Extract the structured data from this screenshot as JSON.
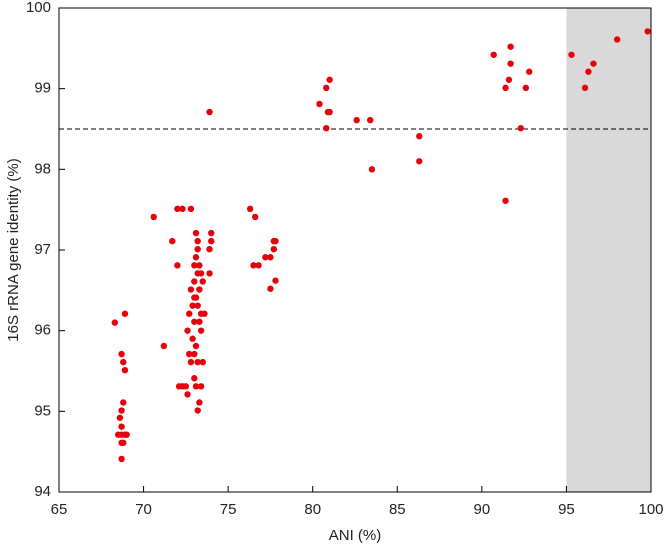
{
  "chart_data": {
    "type": "scatter",
    "x_label": "ANI (%)",
    "y_label": "16S rRNA gene identity (%)",
    "xlim": [
      65,
      100
    ],
    "xticks": [
      65,
      70,
      75,
      80,
      85,
      90,
      95,
      100
    ],
    "ylim": [
      94,
      100
    ],
    "yticks": [
      94,
      95,
      96,
      97,
      98,
      99,
      100
    ],
    "reference_line_y": 98.5,
    "shaded_x": [
      95,
      100
    ],
    "series": [
      {
        "color": "#e8000b",
        "x": [
          95.3,
          98.0,
          99.8,
          96.6,
          96.3,
          96.1,
          90.7,
          91.7,
          91.7,
          91.4,
          91.6,
          92.8,
          92.6,
          92.3,
          91.4,
          80.4,
          80.8,
          81.0,
          80.9,
          81.0,
          80.8,
          82.6,
          83.4,
          83.5,
          86.3,
          86.3,
          73.9,
          76.3,
          76.6,
          76.8,
          77.2,
          77.5,
          77.7,
          77.8,
          77.7,
          77.5,
          77.8,
          76.5,
          70.6,
          72.0,
          72.3,
          72.8,
          71.7,
          74.0,
          74.0,
          73.9,
          73.9,
          72.0,
          71.2,
          73.1,
          73.2,
          73.2,
          73.1,
          73.0,
          73.3,
          73.4,
          73.2,
          73.0,
          73.5,
          73.3,
          72.8,
          73.0,
          73.1,
          72.9,
          73.2,
          73.4,
          73.6,
          72.7,
          73.0,
          73.3,
          73.4,
          72.6,
          72.9,
          73.1,
          72.7,
          73.0,
          73.2,
          72.8,
          73.5,
          73.0,
          72.1,
          72.3,
          72.5,
          73.1,
          73.4,
          72.6,
          73.3,
          73.2,
          68.3,
          68.9,
          68.7,
          68.8,
          68.9,
          68.8,
          68.7,
          68.6,
          68.7,
          68.5,
          68.7,
          68.9,
          69.0,
          68.7,
          68.8,
          68.7
        ],
        "y": [
          99.42,
          99.61,
          99.71,
          99.31,
          99.21,
          99.01,
          99.42,
          99.52,
          99.31,
          99.01,
          99.11,
          99.21,
          99.01,
          98.51,
          97.61,
          98.81,
          99.01,
          99.11,
          98.71,
          98.71,
          98.51,
          98.61,
          98.61,
          98.0,
          98.41,
          98.1,
          98.71,
          97.51,
          97.41,
          96.81,
          96.91,
          96.91,
          97.11,
          97.11,
          97.01,
          96.52,
          96.62,
          96.81,
          97.41,
          97.51,
          97.51,
          97.51,
          97.11,
          97.21,
          97.11,
          97.01,
          96.71,
          96.81,
          95.81,
          97.21,
          97.11,
          97.01,
          96.91,
          96.81,
          96.81,
          96.71,
          96.71,
          96.61,
          96.61,
          96.51,
          96.51,
          96.41,
          96.41,
          96.31,
          96.31,
          96.21,
          96.21,
          96.21,
          96.11,
          96.11,
          96.0,
          96.0,
          95.9,
          95.81,
          95.71,
          95.71,
          95.61,
          95.61,
          95.61,
          95.41,
          95.31,
          95.31,
          95.31,
          95.31,
          95.31,
          95.21,
          95.11,
          95.01,
          96.1,
          96.21,
          95.71,
          95.61,
          95.51,
          95.11,
          95.01,
          94.92,
          94.81,
          94.71,
          94.71,
          94.71,
          94.71,
          94.61,
          94.61,
          94.41
        ]
      }
    ]
  }
}
